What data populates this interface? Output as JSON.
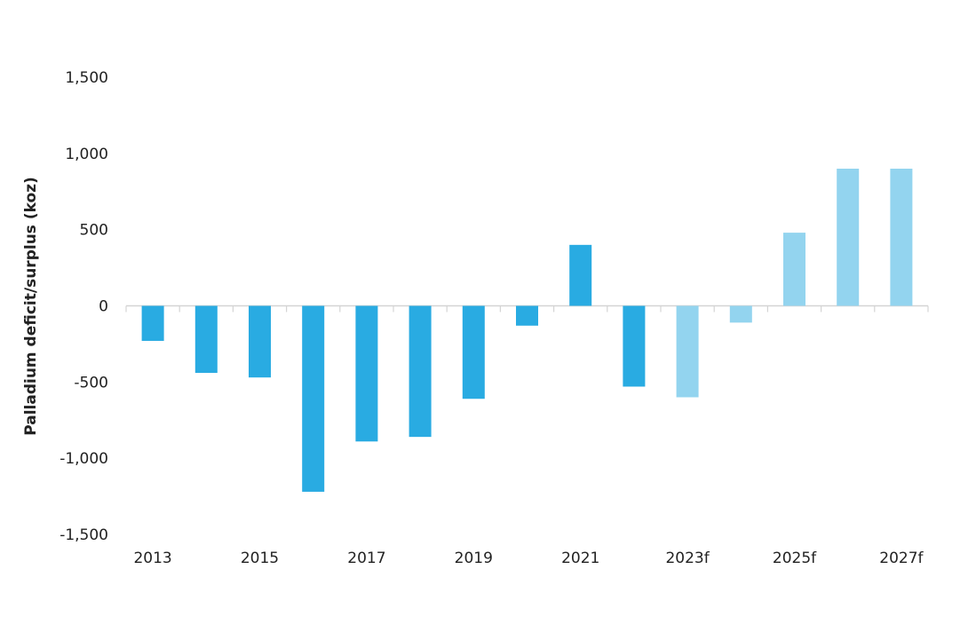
{
  "chart_data": {
    "type": "bar",
    "ylabel": "Palladium deficit/surplus   (koz)",
    "xlabel": "",
    "ylim": [
      -1500,
      1500
    ],
    "y_ticks": [
      1500,
      1000,
      500,
      0,
      -500,
      -1000,
      -1500
    ],
    "y_tick_labels": [
      "1,500",
      "1,000",
      "500",
      "0",
      "-500",
      "-1,000",
      "-1,500"
    ],
    "categories": [
      "2013",
      "2014",
      "2015",
      "2016",
      "2017",
      "2018",
      "2019",
      "2020",
      "2021",
      "2022",
      "2023f",
      "2024f",
      "2025f",
      "2026f",
      "2027f"
    ],
    "x_tick_labels_shown": [
      "2013",
      "2015",
      "2017",
      "2019",
      "2021",
      "2023f",
      "2025f",
      "2027f"
    ],
    "values": [
      -230,
      -440,
      -470,
      -1220,
      -890,
      -860,
      -610,
      -130,
      400,
      -530,
      -600,
      -110,
      480,
      900,
      900
    ],
    "forecast": [
      false,
      false,
      false,
      false,
      false,
      false,
      false,
      false,
      false,
      false,
      true,
      true,
      true,
      true,
      true
    ],
    "grid": false,
    "legend": "none",
    "colors": {
      "actual": "#29abe2",
      "forecast": "#93d4ef",
      "axis": "#d4d4d4",
      "text": "#222222"
    }
  }
}
